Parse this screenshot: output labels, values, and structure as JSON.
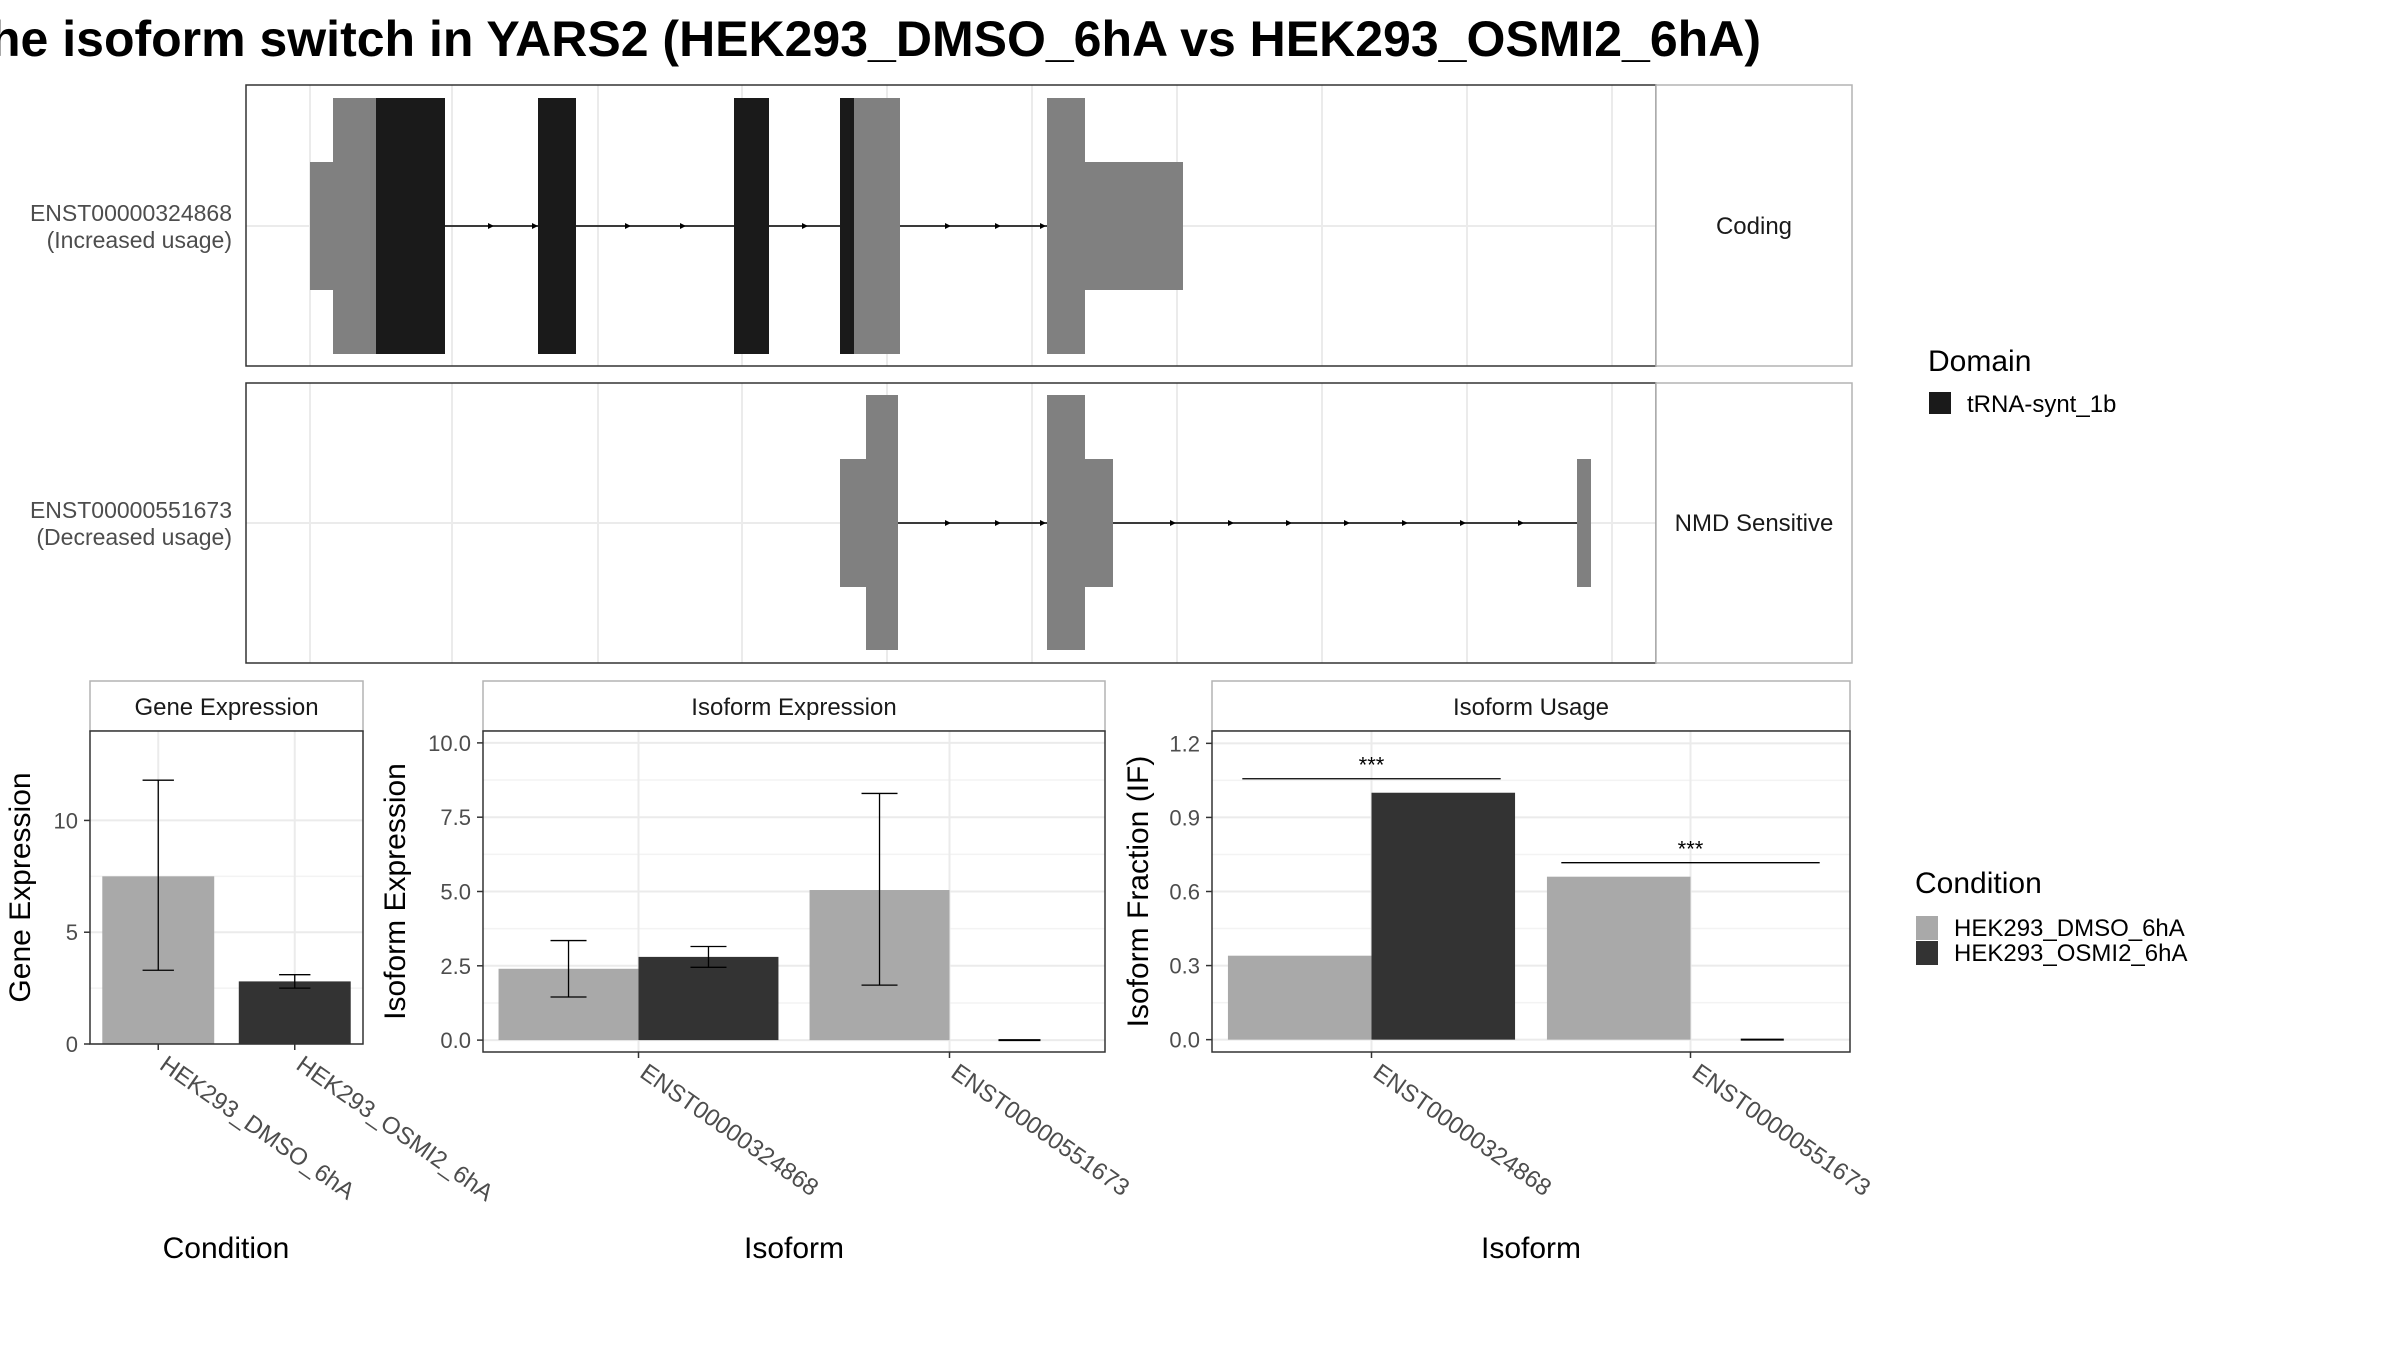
{
  "title": "he isoform switch in YARS2 (HEK293_DMSO_6hA vs HEK293_OSMI2_6hA)",
  "colors": {
    "dmso": "#a9a9a9",
    "osmi2": "#333333",
    "exon": "#808080",
    "domain": "#1a1a1a",
    "grid": "#ebebeb",
    "panel_border": "#333333",
    "strip_border": "#b3b3b3"
  },
  "legends": {
    "domain": {
      "title": "Domain",
      "items": [
        {
          "label": "tRNA-synt_1b",
          "color": "#1a1a1a"
        }
      ]
    },
    "condition": {
      "title": "Condition",
      "items": [
        {
          "label": "HEK293_DMSO_6hA",
          "color": "#a9a9a9"
        },
        {
          "label": "HEK293_OSMI2_6hA",
          "color": "#333333"
        }
      ]
    }
  },
  "transcripts": [
    {
      "id": "ENST00000324868",
      "note": "(Increased usage)",
      "strip": "Coding"
    },
    {
      "id": "ENST00000551673",
      "note": "(Decreased usage)",
      "strip": "NMD Sensitive"
    }
  ],
  "chart_data": [
    {
      "type": "bar",
      "panel": "Gene Expression",
      "categories": [
        "HEK293_DMSO_6hA",
        "HEK293_OSMI2_6hA"
      ],
      "values": [
        7.5,
        2.8
      ],
      "errors": [
        [
          3.3,
          11.8
        ],
        [
          2.5,
          3.1
        ]
      ],
      "ticks": [
        "0",
        "5",
        "10"
      ],
      "ylim": [
        0,
        14
      ],
      "xlabel": "Condition",
      "ylabel": "Gene Expression"
    },
    {
      "type": "bar",
      "panel": "Isoform Expression",
      "categories": [
        "ENST00000324868",
        "ENST00000551673"
      ],
      "series": [
        {
          "name": "HEK293_DMSO_6hA",
          "values": [
            2.4,
            5.05
          ],
          "errors": [
            [
              1.45,
              3.35
            ],
            [
              1.85,
              8.3
            ]
          ]
        },
        {
          "name": "HEK293_OSMI2_6hA",
          "values": [
            2.8,
            0.0
          ],
          "errors": [
            [
              2.45,
              3.15
            ],
            null
          ]
        }
      ],
      "ticks": [
        "0.0",
        "2.5",
        "5.0",
        "7.5",
        "10.0"
      ],
      "ylim": [
        -0.4,
        10.4
      ],
      "xlabel": "Isoform",
      "ylabel": "Isoform Expression"
    },
    {
      "type": "bar",
      "panel": "Isoform Usage",
      "categories": [
        "ENST00000324868",
        "ENST00000551673"
      ],
      "series": [
        {
          "name": "HEK293_DMSO_6hA",
          "values": [
            0.34,
            0.66
          ]
        },
        {
          "name": "HEK293_OSMI2_6hA",
          "values": [
            1.0,
            0.0
          ]
        }
      ],
      "significance": [
        "***",
        "***"
      ],
      "ticks": [
        "0.0",
        "0.3",
        "0.6",
        "0.9",
        "1.2"
      ],
      "ylim": [
        -0.05,
        1.25
      ],
      "xlabel": "Isoform",
      "ylabel": "Isoform Fraction (IF)"
    }
  ]
}
